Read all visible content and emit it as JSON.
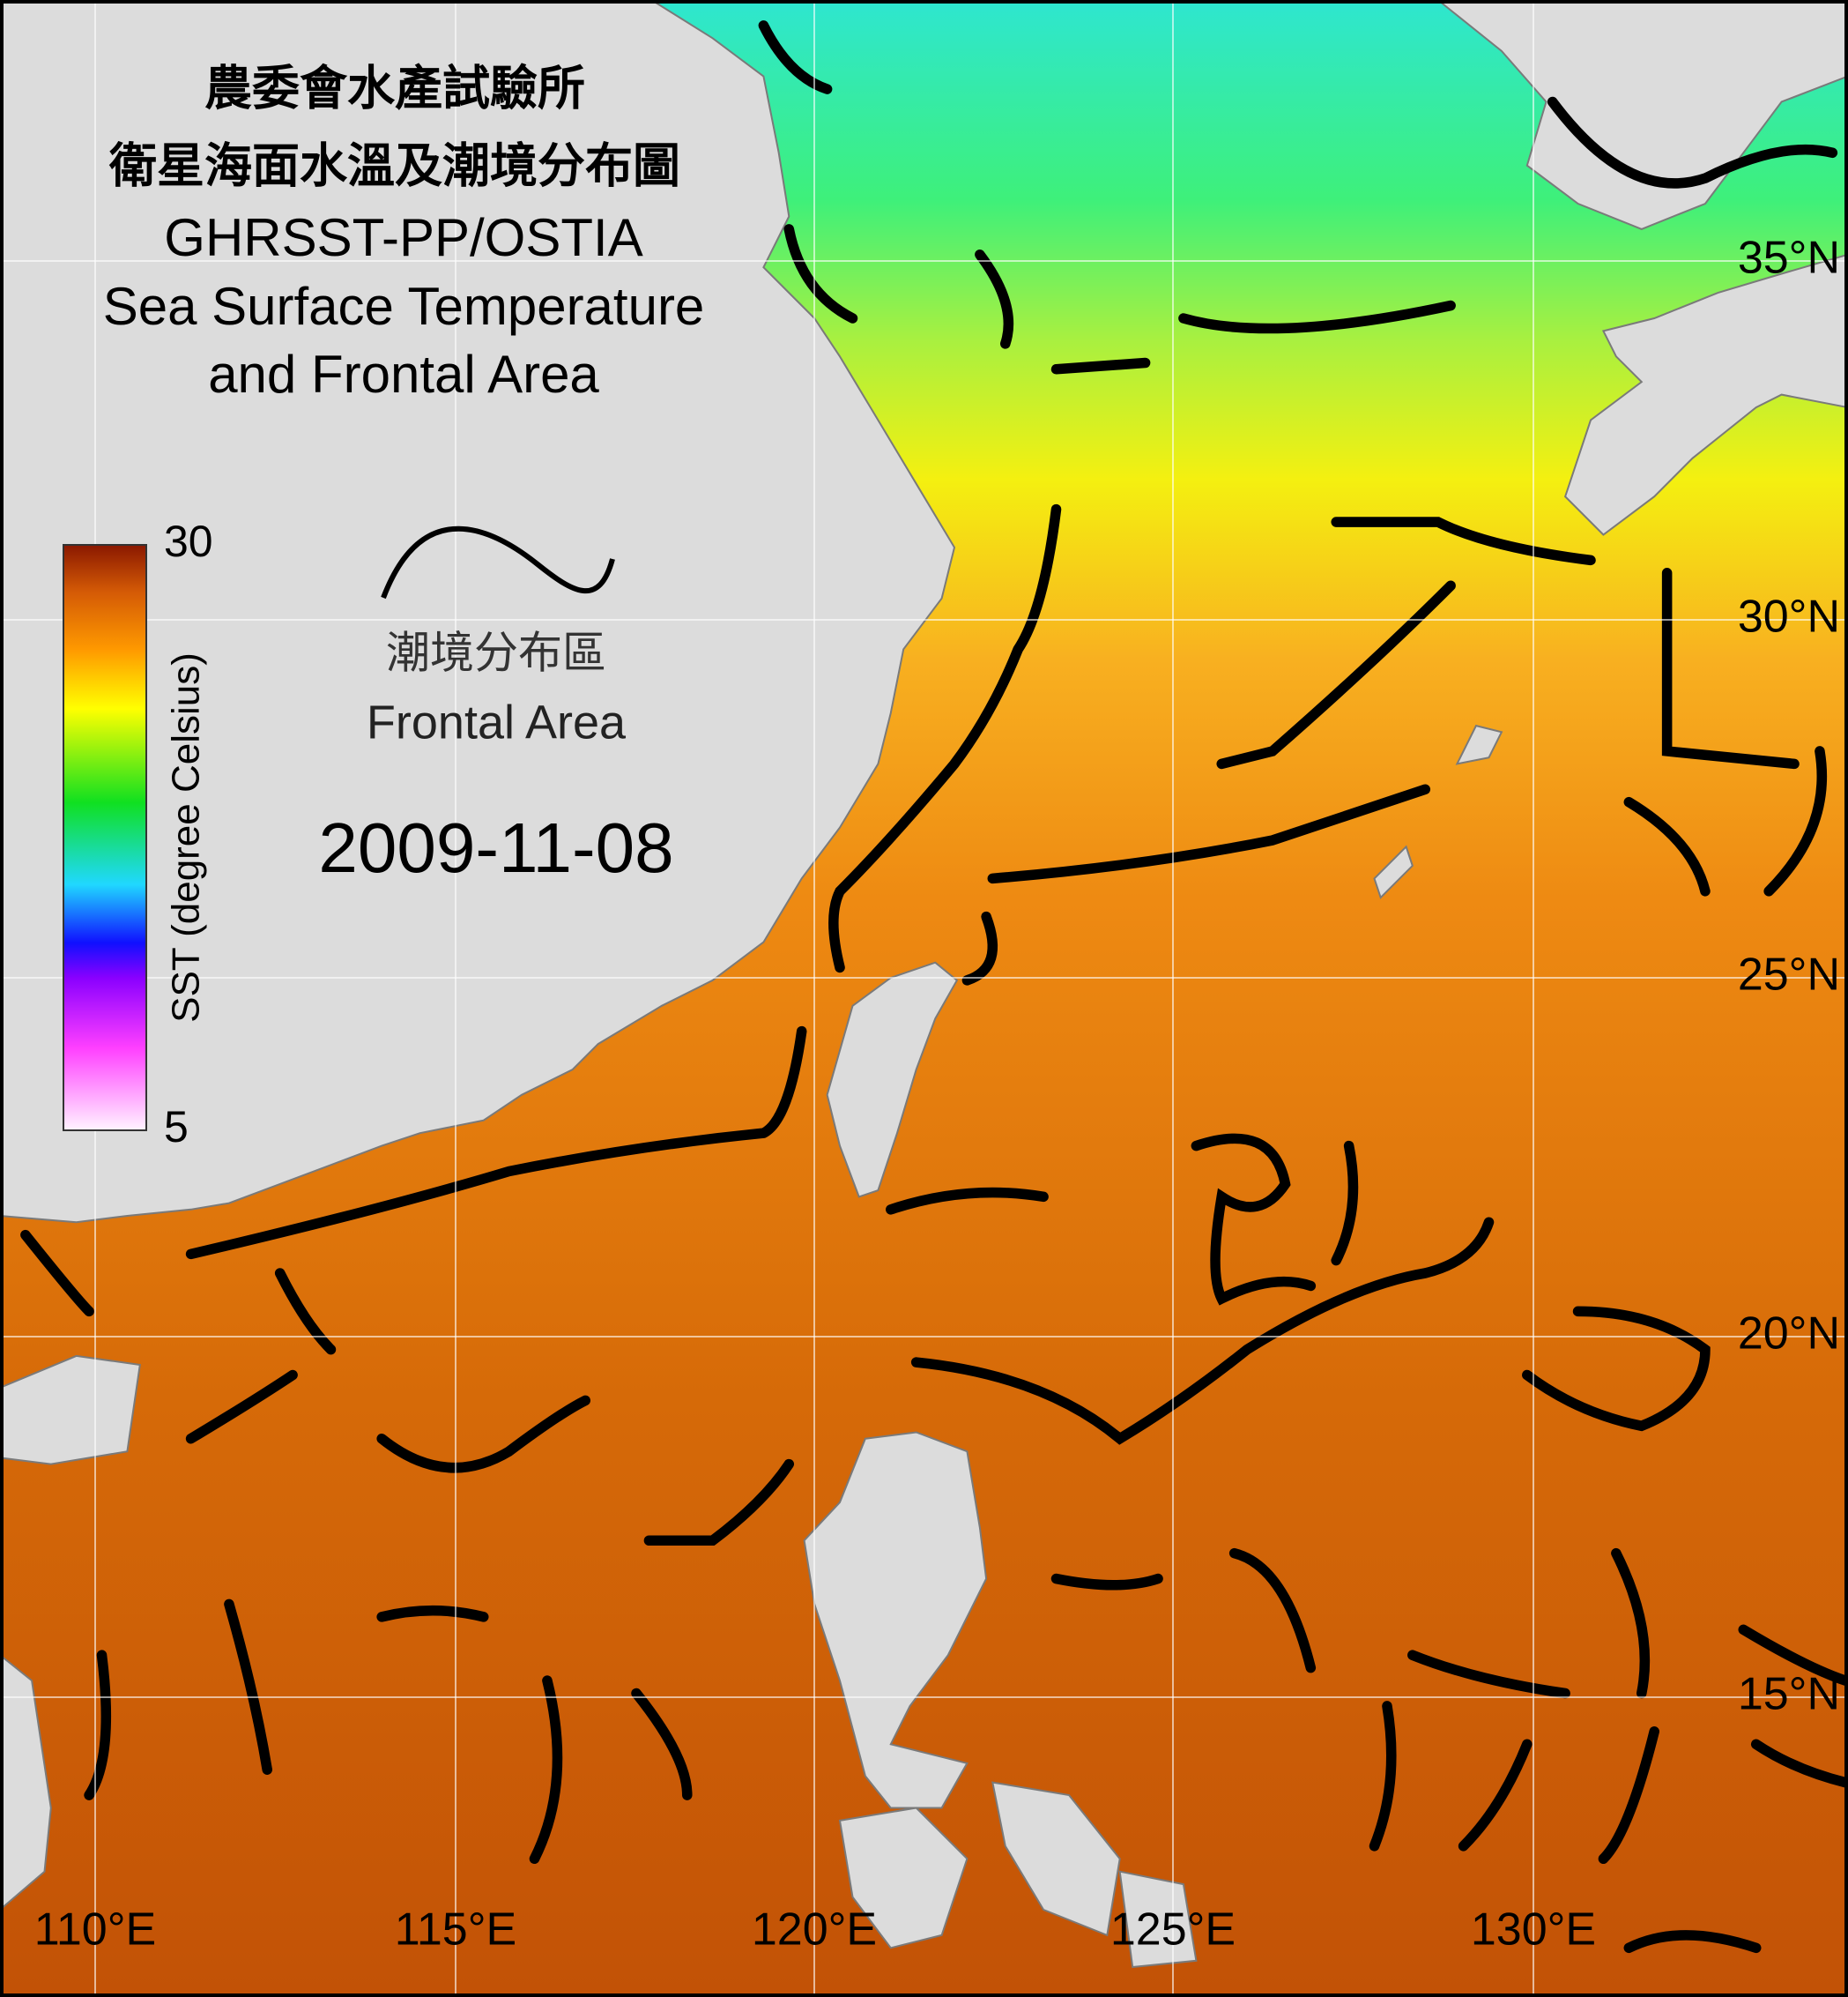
{
  "header": {
    "title_lines": [
      "農委會水產試驗所",
      "衛星海面水溫及潮境分布圖",
      "GHRSST-PP/OSTIA",
      "Sea Surface Temperature",
      "and Frontal Area"
    ]
  },
  "legend": {
    "front_label_zh": "潮境分布區",
    "front_label_en": "Frontal Area"
  },
  "date": "2009-11-08",
  "colorbar": {
    "label": "SST (degree Celsius)",
    "min": 5,
    "max": 30
  },
  "grid": {
    "lon_labels": [
      "110°E",
      "115°E",
      "120°E",
      "125°E",
      "130°E"
    ],
    "lat_labels": [
      "35°N",
      "30°N",
      "25°N",
      "20°N",
      "15°N"
    ]
  }
}
